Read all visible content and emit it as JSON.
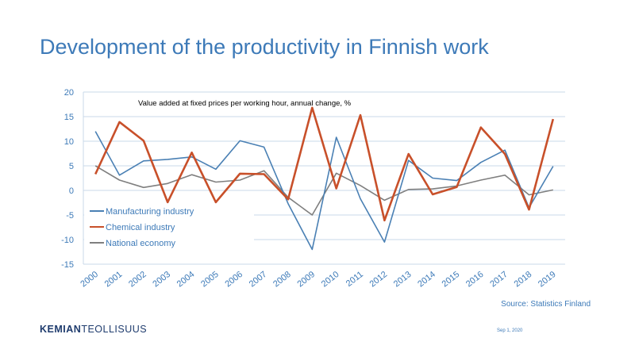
{
  "slide": {
    "title": "Development of the productivity in Finnish work",
    "source": "Source: Statistics Finland",
    "logo_part1": "KEMIAN",
    "logo_part2": "TEOLLISUUS",
    "date": "Sep 1, 2020"
  },
  "chart_data": {
    "type": "line",
    "title": "Value added at fixed prices per working hour, annual change, %",
    "xlabel": "",
    "ylabel": "",
    "categories": [
      "2000",
      "2001",
      "2002",
      "2003",
      "2004",
      "2005",
      "2006",
      "2007",
      "2008",
      "2009",
      "2010",
      "2011",
      "2012",
      "2013",
      "2014",
      "2015",
      "2016",
      "2017",
      "2018",
      "2019"
    ],
    "ylim": [
      -15,
      20
    ],
    "yticks": [
      "20",
      "15",
      "10",
      "5",
      "0",
      "-5",
      "-10",
      "-15"
    ],
    "grid": true,
    "legend_position": "left",
    "series": [
      {
        "name": "Manufacturing industry",
        "color": "#4a80b4",
        "values": [
          12,
          3.1,
          6,
          6.3,
          6.8,
          4.3,
          10.1,
          8.8,
          -2.7,
          -12,
          10.8,
          -1.7,
          -10.5,
          6.1,
          2.5,
          2,
          5.7,
          8.2,
          -3.5,
          4.9
        ]
      },
      {
        "name": "Chemical industry",
        "color": "#c8502a",
        "values": [
          3.3,
          13.9,
          10.1,
          -2.4,
          7.7,
          -2.4,
          3.4,
          3.3,
          -1.8,
          16.8,
          0.4,
          15.3,
          -6.1,
          7.4,
          -0.8,
          0.7,
          12.8,
          7.4,
          -3.9,
          14.5
        ]
      },
      {
        "name": "National economy",
        "color": "#7f7f7f",
        "values": [
          5,
          2.1,
          0.6,
          1.4,
          3.2,
          1.7,
          2.1,
          4,
          -1.4,
          -5,
          3.5,
          1,
          -2,
          0.2,
          0.3,
          0.9,
          2.1,
          3.1,
          -0.9,
          0.1
        ]
      }
    ]
  }
}
